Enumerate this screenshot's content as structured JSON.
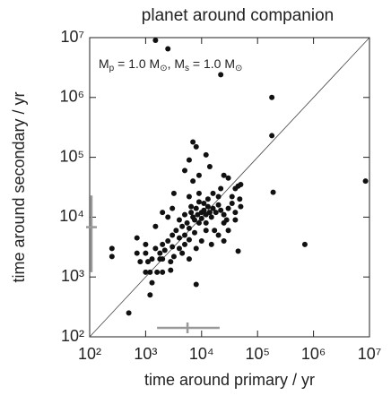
{
  "chart_data": {
    "type": "scatter",
    "title": "planet around companion",
    "annotation": [
      "M",
      "p",
      " = 1.0 M",
      "⊙",
      ", M",
      "s",
      " = 1.0 M",
      "⊙"
    ],
    "x_label": "time around primary / yr",
    "y_label": "time around secondary / yr",
    "log_x": true,
    "log_y": true,
    "identity_line": true,
    "color": "#111111",
    "error_color": "#999999",
    "xlim": [
      100,
      10000000
    ],
    "ylim": [
      100,
      10000000
    ],
    "xticks": [
      {
        "value": 100,
        "label": "10²"
      },
      {
        "value": 1000,
        "label": "10³"
      },
      {
        "value": 10000,
        "label": "10⁴"
      },
      {
        "value": 100000,
        "label": "10⁵"
      },
      {
        "value": 1000000,
        "label": "10⁶"
      },
      {
        "value": 10000000,
        "label": "10⁷"
      }
    ],
    "yticks": [
      {
        "value": 100,
        "label": "10²"
      },
      {
        "value": 1000,
        "label": "10³"
      },
      {
        "value": 10000,
        "label": "10⁴"
      },
      {
        "value": 100000,
        "label": "10⁵"
      },
      {
        "value": 1000000,
        "label": "10⁶"
      },
      {
        "value": 10000000,
        "label": "10⁷"
      }
    ],
    "error_bars": [
      {
        "axis": "y",
        "center": 6800,
        "low": 1200,
        "high": 23000
      },
      {
        "axis": "x",
        "center": 5600,
        "low": 1600,
        "high": 21000
      }
    ],
    "x": [
      1500,
      2500,
      22000,
      180000,
      180000,
      190000,
      700000,
      8500000,
      500,
      250,
      250,
      1200,
      8000,
      7000,
      8000,
      12000,
      6000,
      14000,
      25000,
      30000,
      5000,
      9000,
      7000,
      40000,
      45000,
      50000,
      3200,
      6000,
      9000,
      13000,
      16000,
      20000,
      22000,
      35000,
      48000,
      2500,
      2000,
      3000,
      4000,
      4500,
      5000,
      5500,
      6000,
      6500,
      7000,
      7500,
      8000,
      8500,
      9000,
      10000,
      10000,
      11000,
      12000,
      12000,
      13000,
      14000,
      15000,
      16000,
      18000,
      20000,
      22000,
      25000,
      28000,
      30000,
      9000,
      11000,
      6500,
      7500,
      5000,
      4000,
      3500,
      3000,
      2500,
      2000,
      1500,
      1800,
      2200,
      3000,
      4000,
      5000,
      6000,
      3200,
      2800,
      1800,
      1300,
      1000,
      700,
      700,
      1000,
      1200,
      1600,
      2000,
      1000,
      800,
      1100,
      2800,
      4500,
      6000,
      17000,
      20000,
      25000,
      30000,
      45000,
      40000,
      50000,
      40000,
      35000,
      25000,
      12000,
      10000,
      15000,
      8000,
      1300,
      2000,
      1500
    ],
    "values": [
      9000000,
      6500000,
      2400000,
      1000000,
      230000,
      26000,
      3500,
      40000,
      250,
      3000,
      2200,
      500,
      750,
      180000,
      150000,
      110000,
      90000,
      70000,
      50000,
      45000,
      60000,
      50000,
      40000,
      30000,
      33000,
      35000,
      25000,
      22000,
      25000,
      20000,
      25000,
      22000,
      30000,
      22000,
      20000,
      10000,
      12000,
      14000,
      9000,
      7000,
      11000,
      8000,
      6500,
      12000,
      10000,
      9000,
      14000,
      11000,
      8000,
      12000,
      9500,
      13000,
      11000,
      8000,
      15000,
      12000,
      10000,
      14000,
      12000,
      16000,
      13000,
      11000,
      9000,
      14000,
      18000,
      17000,
      15000,
      5500,
      5000,
      4500,
      6000,
      5000,
      4000,
      3500,
      3000,
      2500,
      2800,
      3200,
      3000,
      3500,
      4200,
      2200,
      1800,
      2000,
      2000,
      2500,
      2500,
      4500,
      3500,
      1200,
      1200,
      1200,
      1200,
      1800,
      1800,
      1300,
      2500,
      2000,
      6000,
      5000,
      8000,
      6000,
      2700,
      9000,
      15000,
      12000,
      17000,
      4000,
      6000,
      4000,
      3500,
      3000,
      800,
      2000,
      7000
    ]
  }
}
